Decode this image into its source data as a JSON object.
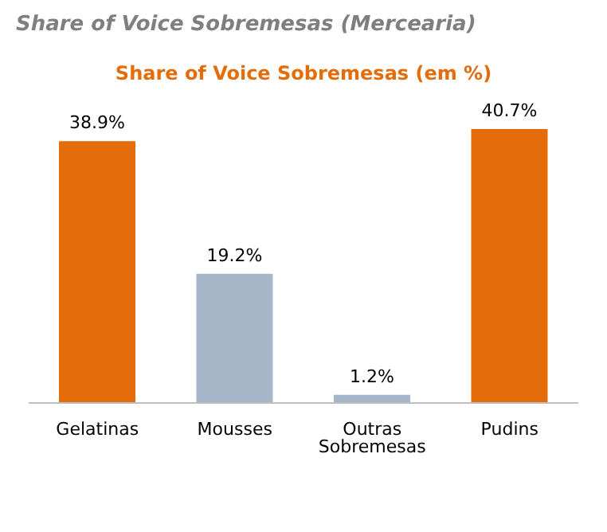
{
  "chart_data": {
    "type": "bar",
    "title": "Share of Voice Sobremesas (Mercearia)",
    "subtitle": "Share of Voice Sobremesas (em %)",
    "categories": [
      "Gelatinas",
      "Mousses",
      "Outras Sobremesas",
      "Pudins"
    ],
    "values": [
      38.9,
      19.2,
      1.2,
      40.7
    ],
    "colors": [
      "#e46c0a",
      "#a6b6c9",
      "#a6b6c9",
      "#e46c0a"
    ],
    "value_labels": [
      "38.9%",
      "19.2%",
      "1.2%",
      "40.7%"
    ],
    "grid": false,
    "legend": false
  }
}
